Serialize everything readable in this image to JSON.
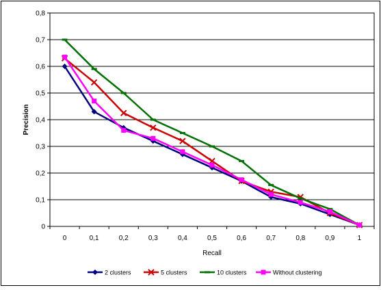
{
  "chart_data": {
    "type": "line",
    "title": "",
    "xlabel": "Recall",
    "ylabel": "Precision",
    "x": [
      0,
      0.1,
      0.2,
      0.3,
      0.4,
      0.5,
      0.6,
      0.7,
      0.8,
      0.9,
      1
    ],
    "x_tick_labels": [
      "0",
      "0,1",
      "0,2",
      "0,3",
      "0,4",
      "0,5",
      "0,6",
      "0,7",
      "0,8",
      "0,9",
      "1"
    ],
    "y_ticks": [
      0,
      0.1,
      0.2,
      0.3,
      0.4,
      0.5,
      0.6,
      0.7,
      0.8
    ],
    "y_tick_labels": [
      "0",
      "0,1",
      "0,2",
      "0,3",
      "0,4",
      "0,5",
      "0,6",
      "0,7",
      "0,8"
    ],
    "ylim": [
      0,
      0.8
    ],
    "xlim": [
      0,
      1
    ],
    "grid": "horizontal",
    "legend_position": "bottom",
    "series": [
      {
        "name": "2 clusters",
        "color": "#000080",
        "marker": "diamond",
        "values": [
          0.6,
          0.43,
          0.37,
          0.32,
          0.27,
          0.22,
          0.17,
          0.11,
          0.085,
          0.045,
          0.005
        ]
      },
      {
        "name": "5 clusters",
        "color": "#cc0000",
        "marker": "x",
        "values": [
          0.63,
          0.54,
          0.425,
          0.37,
          0.32,
          0.245,
          0.17,
          0.13,
          0.11,
          0.05,
          0.005
        ]
      },
      {
        "name": "10 clusters",
        "color": "#007000",
        "marker": "dash",
        "values": [
          0.7,
          0.59,
          0.5,
          0.4,
          0.35,
          0.3,
          0.245,
          0.155,
          0.105,
          0.065,
          0.005
        ]
      },
      {
        "name": "Without clustering",
        "color": "#ff00ff",
        "marker": "square",
        "values": [
          0.635,
          0.47,
          0.36,
          0.33,
          0.28,
          0.23,
          0.175,
          0.12,
          0.09,
          0.055,
          0.005
        ]
      }
    ]
  }
}
